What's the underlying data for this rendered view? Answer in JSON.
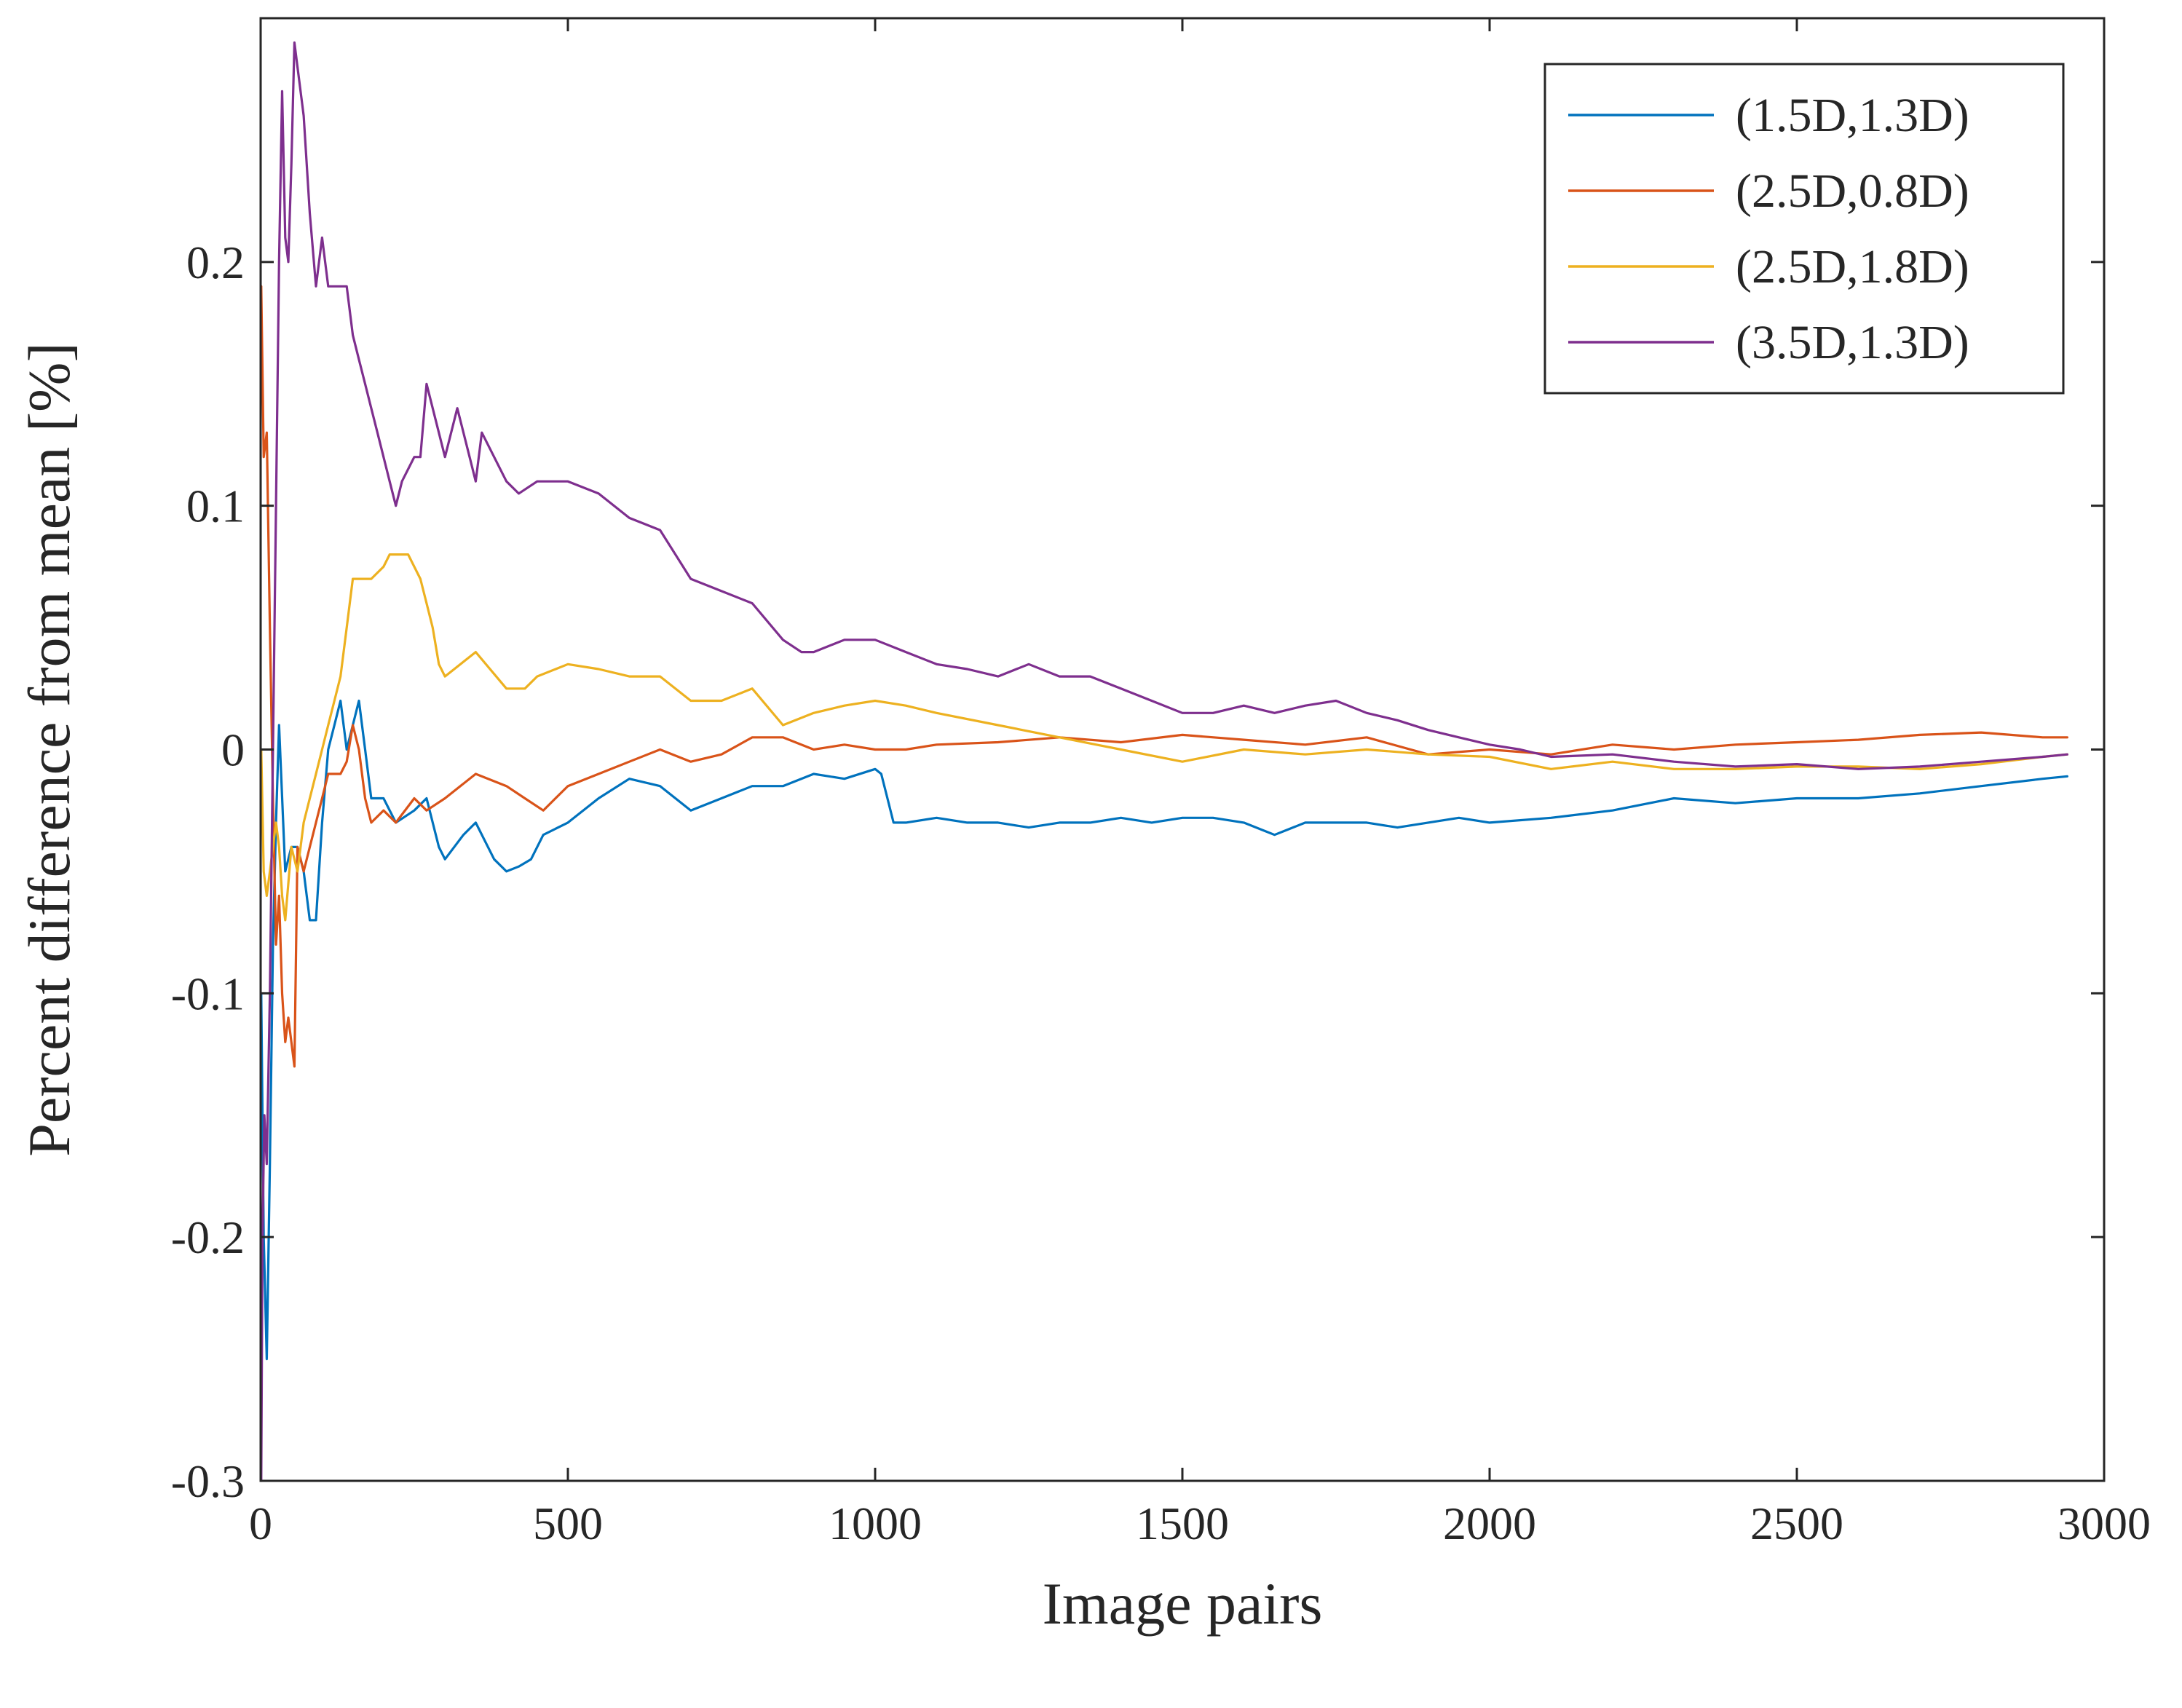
{
  "chart_data": {
    "type": "line",
    "title": "",
    "xlabel": "Image pairs",
    "ylabel": "Percent difference from mean [%]",
    "xlim": [
      0,
      3000
    ],
    "ylim": [
      -0.3,
      0.3
    ],
    "xticks": [
      0,
      500,
      1000,
      1500,
      2000,
      2500,
      3000
    ],
    "xtick_labels": [
      "0",
      "500",
      "1000",
      "1500",
      "2000",
      "2500",
      "3000"
    ],
    "yticks": [
      -0.3,
      -0.2,
      -0.1,
      0,
      0.1,
      0.2
    ],
    "ytick_labels": [
      "-0.3",
      "-0.2",
      "-0.1",
      "0",
      "0.1",
      "0.2"
    ],
    "grid": false,
    "legend_position": "top-right",
    "series": [
      {
        "name": "(1.5D,1.3D)",
        "color": "#0072BD",
        "x": [
          1,
          5,
          10,
          15,
          20,
          25,
          30,
          40,
          50,
          60,
          70,
          80,
          90,
          100,
          110,
          120,
          130,
          140,
          150,
          160,
          170,
          180,
          200,
          220,
          250,
          270,
          290,
          300,
          330,
          350,
          380,
          400,
          420,
          440,
          460,
          500,
          550,
          600,
          650,
          700,
          750,
          800,
          850,
          900,
          950,
          1000,
          1010,
          1020,
          1030,
          1050,
          1100,
          1150,
          1200,
          1250,
          1300,
          1350,
          1400,
          1450,
          1500,
          1550,
          1600,
          1650,
          1700,
          1750,
          1800,
          1850,
          1900,
          1950,
          2000,
          2100,
          2200,
          2300,
          2400,
          2500,
          2600,
          2700,
          2800,
          2900,
          2940
        ],
        "y": [
          -0.1,
          -0.2,
          -0.25,
          -0.17,
          -0.08,
          -0.03,
          0.01,
          -0.05,
          -0.04,
          -0.04,
          -0.05,
          -0.07,
          -0.07,
          -0.03,
          0.0,
          0.01,
          0.02,
          0.0,
          0.01,
          0.02,
          0.0,
          -0.02,
          -0.02,
          -0.03,
          -0.025,
          -0.02,
          -0.04,
          -0.045,
          -0.035,
          -0.03,
          -0.045,
          -0.05,
          -0.048,
          -0.045,
          -0.035,
          -0.03,
          -0.02,
          -0.012,
          -0.015,
          -0.025,
          -0.02,
          -0.015,
          -0.015,
          -0.01,
          -0.012,
          -0.008,
          -0.01,
          -0.02,
          -0.03,
          -0.03,
          -0.028,
          -0.03,
          -0.03,
          -0.032,
          -0.03,
          -0.03,
          -0.028,
          -0.03,
          -0.028,
          -0.028,
          -0.03,
          -0.035,
          -0.03,
          -0.03,
          -0.03,
          -0.032,
          -0.03,
          -0.028,
          -0.03,
          -0.028,
          -0.025,
          -0.02,
          -0.022,
          -0.02,
          -0.02,
          -0.018,
          -0.015,
          -0.012,
          -0.011
        ]
      },
      {
        "name": "(2.5D,0.8D)",
        "color": "#D95319",
        "x": [
          1,
          5,
          10,
          15,
          20,
          25,
          30,
          35,
          40,
          45,
          50,
          55,
          60,
          70,
          80,
          90,
          100,
          110,
          120,
          130,
          140,
          150,
          160,
          170,
          180,
          200,
          220,
          250,
          270,
          300,
          350,
          400,
          430,
          460,
          500,
          550,
          600,
          650,
          700,
          750,
          800,
          850,
          900,
          950,
          1000,
          1050,
          1100,
          1200,
          1300,
          1400,
          1500,
          1600,
          1700,
          1800,
          1900,
          2000,
          2100,
          2200,
          2300,
          2400,
          2500,
          2600,
          2700,
          2800,
          2900,
          2940
        ],
        "y": [
          0.19,
          0.12,
          0.13,
          0.05,
          -0.02,
          -0.08,
          -0.06,
          -0.1,
          -0.12,
          -0.11,
          -0.12,
          -0.13,
          -0.04,
          -0.05,
          -0.04,
          -0.03,
          -0.02,
          -0.01,
          -0.01,
          -0.01,
          -0.005,
          0.01,
          0.0,
          -0.02,
          -0.03,
          -0.025,
          -0.03,
          -0.02,
          -0.025,
          -0.02,
          -0.01,
          -0.015,
          -0.02,
          -0.025,
          -0.015,
          -0.01,
          -0.005,
          0.0,
          -0.005,
          -0.002,
          0.005,
          0.005,
          0.0,
          0.002,
          0.0,
          0.0,
          0.002,
          0.003,
          0.005,
          0.003,
          0.006,
          0.004,
          0.002,
          0.005,
          -0.002,
          0.0,
          -0.002,
          0.002,
          0.0,
          0.002,
          0.003,
          0.004,
          0.006,
          0.007,
          0.005,
          0.005
        ]
      },
      {
        "name": "(2.5D,1.8D)",
        "color": "#EDB120",
        "x": [
          1,
          5,
          10,
          15,
          20,
          25,
          30,
          35,
          40,
          50,
          60,
          70,
          80,
          90,
          100,
          110,
          120,
          130,
          140,
          150,
          160,
          180,
          200,
          210,
          220,
          240,
          250,
          260,
          270,
          280,
          290,
          300,
          350,
          400,
          430,
          450,
          500,
          550,
          600,
          650,
          700,
          750,
          800,
          850,
          900,
          950,
          1000,
          1050,
          1100,
          1200,
          1300,
          1400,
          1500,
          1600,
          1700,
          1800,
          1900,
          2000,
          2100,
          2200,
          2300,
          2400,
          2500,
          2600,
          2700,
          2800,
          2900,
          2940
        ],
        "y": [
          0.0,
          -0.05,
          -0.06,
          -0.05,
          -0.04,
          -0.03,
          -0.04,
          -0.06,
          -0.07,
          -0.04,
          -0.05,
          -0.03,
          -0.02,
          -0.01,
          0.0,
          0.01,
          0.02,
          0.03,
          0.05,
          0.07,
          0.07,
          0.07,
          0.075,
          0.08,
          0.08,
          0.08,
          0.075,
          0.07,
          0.06,
          0.05,
          0.035,
          0.03,
          0.04,
          0.025,
          0.025,
          0.03,
          0.035,
          0.033,
          0.03,
          0.03,
          0.02,
          0.02,
          0.025,
          0.01,
          0.015,
          0.018,
          0.02,
          0.018,
          0.015,
          0.01,
          0.005,
          0.0,
          -0.005,
          0.0,
          -0.002,
          0.0,
          -0.002,
          -0.003,
          -0.008,
          -0.005,
          -0.008,
          -0.008,
          -0.007,
          -0.007,
          -0.008,
          -0.006,
          -0.003,
          -0.002
        ]
      },
      {
        "name": "(3.5D,1.3D)",
        "color": "#7E2F8E",
        "x": [
          1,
          3,
          6,
          10,
          15,
          20,
          25,
          30,
          35,
          40,
          45,
          50,
          55,
          60,
          70,
          80,
          90,
          100,
          110,
          120,
          130,
          140,
          150,
          160,
          170,
          180,
          190,
          200,
          210,
          220,
          230,
          250,
          260,
          270,
          280,
          300,
          320,
          340,
          350,
          360,
          380,
          400,
          420,
          450,
          480,
          500,
          550,
          600,
          650,
          700,
          750,
          800,
          850,
          880,
          900,
          950,
          1000,
          1050,
          1100,
          1150,
          1200,
          1250,
          1300,
          1350,
          1400,
          1450,
          1500,
          1550,
          1600,
          1650,
          1700,
          1750,
          1800,
          1850,
          1900,
          1950,
          2000,
          2050,
          2100,
          2200,
          2300,
          2400,
          2500,
          2600,
          2700,
          2800,
          2900,
          2940
        ],
        "y": [
          -0.3,
          -0.2,
          -0.15,
          -0.17,
          -0.1,
          0.0,
          0.1,
          0.2,
          0.27,
          0.21,
          0.2,
          0.24,
          0.29,
          0.28,
          0.26,
          0.22,
          0.19,
          0.21,
          0.19,
          0.19,
          0.19,
          0.19,
          0.17,
          0.16,
          0.15,
          0.14,
          0.13,
          0.12,
          0.11,
          0.1,
          0.11,
          0.12,
          0.12,
          0.15,
          0.14,
          0.12,
          0.14,
          0.12,
          0.11,
          0.13,
          0.12,
          0.11,
          0.105,
          0.11,
          0.11,
          0.11,
          0.105,
          0.095,
          0.09,
          0.07,
          0.065,
          0.06,
          0.045,
          0.04,
          0.04,
          0.045,
          0.045,
          0.04,
          0.035,
          0.033,
          0.03,
          0.035,
          0.03,
          0.03,
          0.025,
          0.02,
          0.015,
          0.015,
          0.018,
          0.015,
          0.018,
          0.02,
          0.015,
          0.012,
          0.008,
          0.005,
          0.002,
          0.0,
          -0.003,
          -0.002,
          -0.005,
          -0.007,
          -0.006,
          -0.008,
          -0.007,
          -0.005,
          -0.003,
          -0.002
        ]
      }
    ]
  }
}
